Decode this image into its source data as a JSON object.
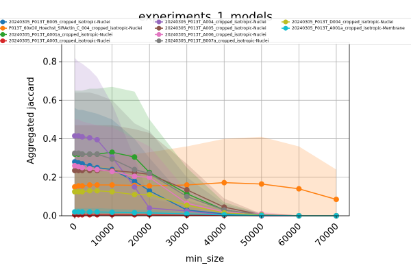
{
  "chart_data": {
    "type": "line",
    "title": "experiments_1_models",
    "xlabel": "min_size",
    "ylabel": "Aggregated jaccard",
    "xlim": [
      -3500,
      73500
    ],
    "ylim": [
      0,
      0.9
    ],
    "xticks": [
      0,
      10000,
      20000,
      30000,
      40000,
      50000,
      60000,
      70000
    ],
    "xtick_labels": [
      "0",
      "10000",
      "20000",
      "30000",
      "40000",
      "50000",
      "60000",
      "70000"
    ],
    "yticks": [
      0.0,
      0.2,
      0.4,
      0.6,
      0.8
    ],
    "ytick_labels": [
      "0.0",
      "0.2",
      "0.4",
      "0.6",
      "0.8"
    ],
    "grid": true,
    "legend_placement": "top",
    "series": [
      {
        "name": "20240305_P013T_B005_cropped_isotropic-Nuclei",
        "color": "#1f77b4",
        "x": [
          0,
          1000,
          2000,
          4000,
          6000,
          10000,
          16000,
          20000,
          30000,
          40000,
          50000,
          60000,
          70000
        ],
        "y": [
          0.28,
          0.275,
          0.27,
          0.26,
          0.25,
          0.24,
          0.18,
          0.13,
          0.03,
          0.01,
          0.005,
          0.0,
          0.0
        ],
        "band": [
          [
            0.0,
            0.56
          ],
          [
            0.0,
            0.55
          ],
          [
            0.0,
            0.55
          ],
          [
            0.0,
            0.54
          ],
          [
            0.0,
            0.53
          ],
          [
            0.0,
            0.5
          ],
          [
            0.0,
            0.4
          ],
          [
            0.0,
            0.3
          ],
          [
            0.0,
            0.08
          ],
          [
            0.0,
            0.03
          ],
          [
            0.0,
            0.01
          ],
          [
            0.0,
            0.0
          ],
          [
            0.0,
            0.0
          ]
        ]
      },
      {
        "name": "P013T_60xOil_Hoechst_SiRActin_C_004_cropped_isotropic-Nuclei",
        "color": "#ff7f0e",
        "x": [
          0,
          1000,
          2000,
          4000,
          6000,
          10000,
          16000,
          20000,
          30000,
          40000,
          50000,
          60000,
          70000
        ],
        "y": [
          0.15,
          0.155,
          0.155,
          0.16,
          0.16,
          0.16,
          0.158,
          0.155,
          0.16,
          0.172,
          0.165,
          0.14,
          0.085
        ],
        "band": [
          [
            0.0,
            0.31
          ],
          [
            0.0,
            0.31
          ],
          [
            0.0,
            0.315
          ],
          [
            0.0,
            0.32
          ],
          [
            0.0,
            0.32
          ],
          [
            0.0,
            0.32
          ],
          [
            0.0,
            0.32
          ],
          [
            0.0,
            0.33
          ],
          [
            0.0,
            0.36
          ],
          [
            0.0,
            0.4
          ],
          [
            0.0,
            0.41
          ],
          [
            0.0,
            0.36
          ],
          [
            0.0,
            0.24
          ]
        ]
      },
      {
        "name": "20240305_P013T_A001a_cropped_isotropic-Nuclei",
        "color": "#2ca02c",
        "x": [
          0,
          1000,
          2000,
          4000,
          6000,
          10000,
          16000,
          20000,
          30000,
          40000,
          50000,
          60000,
          70000
        ],
        "y": [
          0.32,
          0.32,
          0.32,
          0.32,
          0.32,
          0.33,
          0.305,
          0.225,
          0.115,
          0.03,
          0.005,
          0.0,
          0.0
        ],
        "band": [
          [
            0.0,
            0.65
          ],
          [
            0.0,
            0.65
          ],
          [
            0.0,
            0.65
          ],
          [
            0.0,
            0.66
          ],
          [
            0.0,
            0.66
          ],
          [
            0.0,
            0.67
          ],
          [
            0.0,
            0.645
          ],
          [
            0.0,
            0.5
          ],
          [
            0.0,
            0.25
          ],
          [
            0.0,
            0.07
          ],
          [
            0.0,
            0.01
          ],
          [
            0.0,
            0.0
          ],
          [
            0.0,
            0.0
          ]
        ]
      },
      {
        "name": "20240305_P013T_A003_cropped_isotropic-Nuclei",
        "color": "#d62728",
        "x": [
          0,
          1000,
          2000,
          4000,
          6000,
          10000,
          16000,
          20000,
          30000,
          40000,
          50000,
          60000,
          70000
        ],
        "y": [
          0.005,
          0.005,
          0.005,
          0.005,
          0.005,
          0.005,
          0.005,
          0.005,
          0.003,
          0.002,
          0.0,
          0.0,
          0.0
        ],
        "band": [
          [
            0.0,
            0.02
          ],
          [
            0.0,
            0.02
          ],
          [
            0.0,
            0.02
          ],
          [
            0.0,
            0.02
          ],
          [
            0.0,
            0.02
          ],
          [
            0.0,
            0.02
          ],
          [
            0.0,
            0.02
          ],
          [
            0.0,
            0.02
          ],
          [
            0.0,
            0.01
          ],
          [
            0.0,
            0.005
          ],
          [
            0.0,
            0.0
          ],
          [
            0.0,
            0.0
          ],
          [
            0.0,
            0.0
          ]
        ]
      },
      {
        "name": "20240305_P013T_A004_cropped_isotropic-Nuclei",
        "color": "#9467bd",
        "x": [
          0,
          1000,
          2000,
          4000,
          6000,
          10000,
          16000,
          20000,
          30000,
          40000,
          50000,
          60000,
          70000
        ],
        "y": [
          0.415,
          0.415,
          0.41,
          0.405,
          0.395,
          0.305,
          0.15,
          0.04,
          0.025,
          0.005,
          0.0,
          0.0,
          0.0
        ],
        "band": [
          [
            0.0,
            0.82
          ],
          [
            0.0,
            0.8
          ],
          [
            0.0,
            0.79
          ],
          [
            0.0,
            0.76
          ],
          [
            0.0,
            0.72
          ],
          [
            0.0,
            0.58
          ],
          [
            0.0,
            0.3
          ],
          [
            0.0,
            0.09
          ],
          [
            0.0,
            0.05
          ],
          [
            0.0,
            0.01
          ],
          [
            0.0,
            0.0
          ],
          [
            0.0,
            0.0
          ],
          [
            0.0,
            0.0
          ]
        ]
      },
      {
        "name": "20240305_P013T_A005_cropped_isotropic-Nuclei",
        "color": "#8c564b",
        "x": [
          0,
          1000,
          2000,
          4000,
          6000,
          10000,
          16000,
          20000,
          30000,
          40000,
          50000,
          60000,
          70000
        ],
        "y": [
          0.235,
          0.235,
          0.235,
          0.235,
          0.235,
          0.235,
          0.225,
          0.215,
          0.135,
          0.045,
          0.005,
          0.0,
          0.0
        ],
        "band": [
          [
            0.0,
            0.47
          ],
          [
            0.0,
            0.47
          ],
          [
            0.0,
            0.47
          ],
          [
            0.0,
            0.47
          ],
          [
            0.0,
            0.47
          ],
          [
            0.0,
            0.47
          ],
          [
            0.0,
            0.45
          ],
          [
            0.0,
            0.43
          ],
          [
            0.0,
            0.27
          ],
          [
            0.0,
            0.09
          ],
          [
            0.0,
            0.01
          ],
          [
            0.0,
            0.0
          ],
          [
            0.0,
            0.0
          ]
        ]
      },
      {
        "name": "20240305_P013T_A006_cropped_isotropic-Nuclei",
        "color": "#e377c2",
        "x": [
          0,
          1000,
          2000,
          4000,
          6000,
          10000,
          16000,
          20000,
          30000,
          40000,
          50000,
          60000,
          70000
        ],
        "y": [
          0.26,
          0.255,
          0.25,
          0.245,
          0.24,
          0.23,
          0.205,
          0.2,
          0.065,
          0.02,
          0.01,
          0.0,
          0.0
        ],
        "band": [
          [
            0.0,
            0.5
          ],
          [
            0.0,
            0.5
          ],
          [
            0.0,
            0.49
          ],
          [
            0.0,
            0.48
          ],
          [
            0.0,
            0.47
          ],
          [
            0.0,
            0.46
          ],
          [
            0.0,
            0.4
          ],
          [
            0.0,
            0.36
          ],
          [
            0.0,
            0.13
          ],
          [
            0.0,
            0.04
          ],
          [
            0.0,
            0.02
          ],
          [
            0.0,
            0.0
          ],
          [
            0.0,
            0.0
          ]
        ]
      },
      {
        "name": "20240305_P013T_B007a_cropped_isotropic-Nuclei",
        "color": "#7f7f7f",
        "x": [
          0,
          1000,
          2000,
          4000,
          6000,
          10000,
          16000,
          20000,
          30000,
          40000,
          50000,
          60000,
          70000
        ],
        "y": [
          0.325,
          0.325,
          0.32,
          0.32,
          0.32,
          0.295,
          0.24,
          0.22,
          0.1,
          0.03,
          0.005,
          0.0,
          0.0
        ],
        "band": [
          [
            0.0,
            0.64
          ],
          [
            0.0,
            0.64
          ],
          [
            0.0,
            0.64
          ],
          [
            0.0,
            0.64
          ],
          [
            0.0,
            0.63
          ],
          [
            0.0,
            0.6
          ],
          [
            0.0,
            0.48
          ],
          [
            0.0,
            0.44
          ],
          [
            0.0,
            0.2
          ],
          [
            0.0,
            0.06
          ],
          [
            0.0,
            0.01
          ],
          [
            0.0,
            0.0
          ],
          [
            0.0,
            0.0
          ]
        ]
      },
      {
        "name": "20240305_P013T_D004_cropped_isotropic-Nuclei",
        "color": "#bcbd22",
        "x": [
          0,
          1000,
          2000,
          4000,
          6000,
          10000,
          16000,
          20000,
          30000,
          40000,
          50000,
          60000,
          70000
        ],
        "y": [
          0.125,
          0.125,
          0.125,
          0.13,
          0.13,
          0.125,
          0.11,
          0.11,
          0.055,
          0.015,
          0.005,
          0.0,
          0.0
        ],
        "band": [
          [
            0.0,
            0.25
          ],
          [
            0.0,
            0.25
          ],
          [
            0.0,
            0.25
          ],
          [
            0.0,
            0.26
          ],
          [
            0.0,
            0.26
          ],
          [
            0.0,
            0.25
          ],
          [
            0.0,
            0.22
          ],
          [
            0.0,
            0.22
          ],
          [
            0.0,
            0.11
          ],
          [
            0.0,
            0.03
          ],
          [
            0.0,
            0.01
          ],
          [
            0.0,
            0.0
          ],
          [
            0.0,
            0.0
          ]
        ]
      },
      {
        "name": "20240305_P013T_A001a_cropped_isotropic-Membrane",
        "color": "#17becf",
        "x": [
          0,
          1000,
          2000,
          4000,
          6000,
          10000,
          16000,
          20000,
          30000,
          40000,
          50000,
          60000,
          70000
        ],
        "y": [
          0.02,
          0.02,
          0.02,
          0.02,
          0.02,
          0.018,
          0.016,
          0.015,
          0.01,
          0.005,
          0.002,
          0.0,
          0.0
        ],
        "band": [
          [
            0.0,
            0.04
          ],
          [
            0.0,
            0.04
          ],
          [
            0.0,
            0.04
          ],
          [
            0.0,
            0.04
          ],
          [
            0.0,
            0.04
          ],
          [
            0.0,
            0.036
          ],
          [
            0.0,
            0.032
          ],
          [
            0.0,
            0.03
          ],
          [
            0.0,
            0.02
          ],
          [
            0.0,
            0.01
          ],
          [
            0.0,
            0.004
          ],
          [
            0.0,
            0.0
          ],
          [
            0.0,
            0.0
          ]
        ]
      }
    ]
  }
}
